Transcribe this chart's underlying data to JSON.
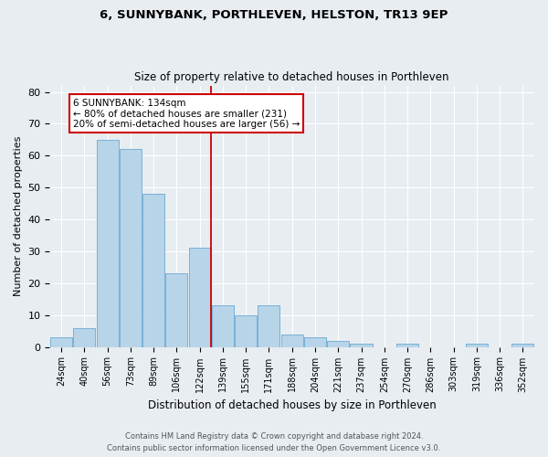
{
  "title": "6, SUNNYBANK, PORTHLEVEN, HELSTON, TR13 9EP",
  "subtitle": "Size of property relative to detached houses in Porthleven",
  "xlabel": "Distribution of detached houses by size in Porthleven",
  "ylabel": "Number of detached properties",
  "bar_color": "#b8d4e8",
  "bar_edge_color": "#6aaad4",
  "background_color": "#e8edf2",
  "categories": [
    "24sqm",
    "40sqm",
    "56sqm",
    "73sqm",
    "89sqm",
    "106sqm",
    "122sqm",
    "139sqm",
    "155sqm",
    "171sqm",
    "188sqm",
    "204sqm",
    "221sqm",
    "237sqm",
    "254sqm",
    "270sqm",
    "286sqm",
    "303sqm",
    "319sqm",
    "336sqm",
    "352sqm"
  ],
  "values": [
    3,
    6,
    65,
    62,
    48,
    23,
    31,
    13,
    10,
    13,
    4,
    3,
    2,
    1,
    0,
    1,
    0,
    0,
    1,
    0,
    1
  ],
  "ylim": [
    0,
    82
  ],
  "yticks": [
    0,
    10,
    20,
    30,
    40,
    50,
    60,
    70,
    80
  ],
  "marker_index": 7,
  "marker_label": "6 SUNNYBANK: 134sqm",
  "marker_smaller": "← 80% of detached houses are smaller (231)",
  "marker_larger": "20% of semi-detached houses are larger (56) →",
  "marker_color": "#cc0000",
  "footnote1": "Contains HM Land Registry data © Crown copyright and database right 2024.",
  "footnote2": "Contains public sector information licensed under the Open Government Licence v3.0."
}
